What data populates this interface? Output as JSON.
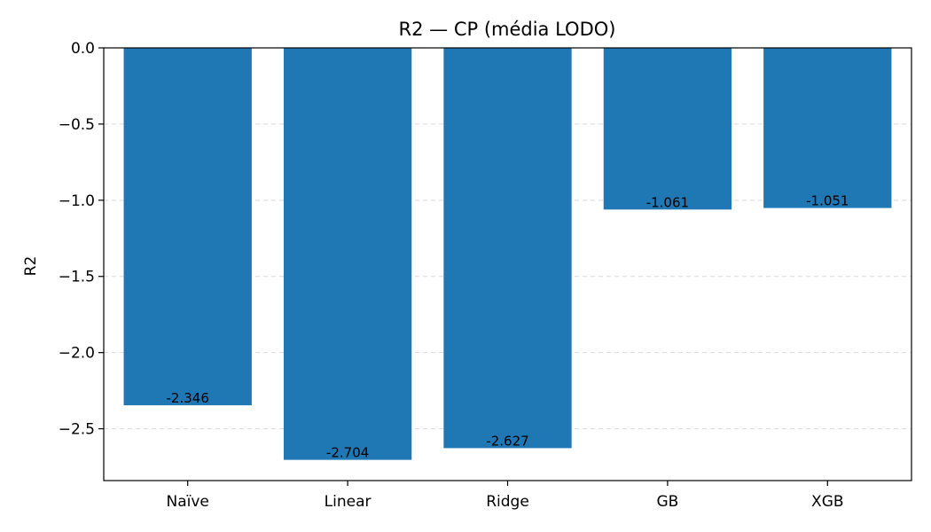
{
  "chart_data": {
    "type": "bar",
    "title": "R2 — CP (média LODO)",
    "xlabel": "",
    "ylabel": "R2",
    "categories": [
      "Naïve",
      "Linear",
      "Ridge",
      "GB",
      "XGB"
    ],
    "values": [
      -2.346,
      -2.704,
      -2.627,
      -1.061,
      -1.051
    ],
    "data_labels": [
      "-2.346",
      "-2.704",
      "-2.627",
      "-1.061",
      "-1.051"
    ],
    "ylim": [
      -2.84,
      0.0
    ],
    "yticks": [
      0.0,
      -0.5,
      -1.0,
      -1.5,
      -2.0,
      -2.5
    ],
    "ytick_labels": [
      "0.0",
      "−0.5",
      "−1.0",
      "−1.5",
      "−2.0",
      "−2.5"
    ],
    "grid": "y-dashed",
    "legend": "none",
    "bar_color": "#1f77b4",
    "grid_color": "#d9d9d9"
  }
}
